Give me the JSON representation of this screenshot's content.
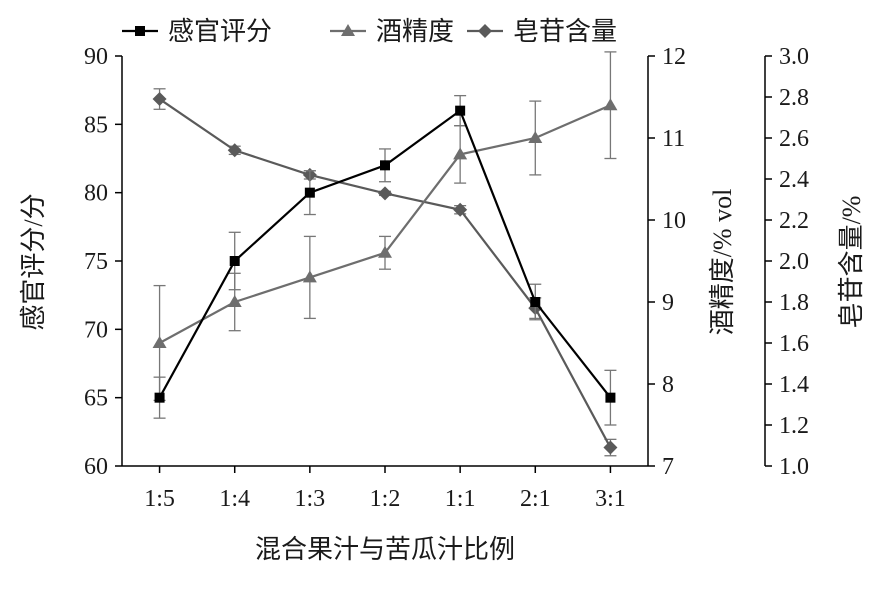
{
  "chart_data": {
    "type": "line",
    "title": "",
    "xlabel": "混合果汁与苦瓜汁比例",
    "categories": [
      "1:5",
      "1:4",
      "1:3",
      "1:2",
      "1:1",
      "2:1",
      "3:1"
    ],
    "axes": {
      "left": {
        "label": "感官评分/分",
        "ylim": [
          60,
          90
        ],
        "ticks": [
          60,
          65,
          70,
          75,
          80,
          85,
          90
        ]
      },
      "right1": {
        "label": "酒精度/% vol",
        "ylim": [
          7,
          12
        ],
        "ticks": [
          7,
          8,
          9,
          10,
          11,
          12
        ]
      },
      "right2": {
        "label": "皂苷含量/%",
        "ylim": [
          1.0,
          3.0
        ],
        "ticks": [
          "1.0",
          "1.2",
          "1.4",
          "1.6",
          "1.8",
          "2.0",
          "2.2",
          "2.4",
          "2.6",
          "2.8",
          "3.0"
        ]
      }
    },
    "series": [
      {
        "name": "感官评分",
        "axis": "left",
        "marker": "square",
        "color": "#000000",
        "values": [
          65,
          75,
          80,
          82,
          86,
          72,
          65
        ],
        "errors": [
          1.5,
          2.1,
          1.6,
          1.2,
          1.1,
          1.3,
          2.0
        ]
      },
      {
        "name": "酒精度",
        "axis": "right1",
        "marker": "triangle",
        "color": "#6e6e6e",
        "values": [
          8.5,
          9.0,
          9.3,
          9.6,
          10.8,
          11.0,
          11.4
        ],
        "errors": [
          0.7,
          0.35,
          0.5,
          0.2,
          0.35,
          0.45,
          0.65
        ]
      },
      {
        "name": "皂苷含量",
        "axis": "right2",
        "marker": "diamond",
        "color": "#5a5a5a",
        "values": [
          2.79,
          2.54,
          2.42,
          2.33,
          2.25,
          1.77,
          1.09
        ],
        "errors": [
          0.05,
          0.02,
          0.02,
          0.01,
          0.02,
          0.05,
          0.04
        ]
      }
    ],
    "grid": false,
    "legend": "top"
  }
}
